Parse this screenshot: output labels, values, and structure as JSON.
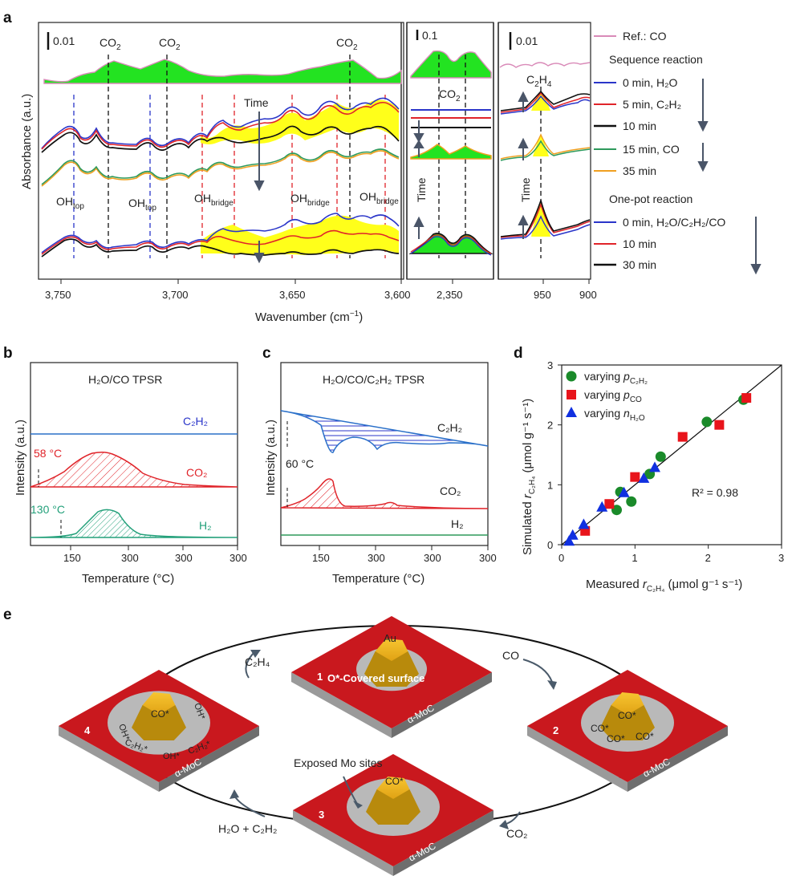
{
  "panels": {
    "a": "a",
    "b": "b",
    "c": "c",
    "d": "d",
    "e": "e"
  },
  "panel_a": {
    "ylabel": "Absorbance (a.u.)",
    "xlabel": "Wavenumber (cm",
    "xlabel_sup": "−1",
    "xlabel_end": ")",
    "scale_main": "0.01",
    "scale_mid": "0.1",
    "scale_right": "0.01",
    "co2": "CO",
    "co2_sub": "2",
    "c2h4": "C",
    "c2h4_sub": "2",
    "c2h4_mid": "H",
    "c2h4_sub2": "4",
    "time": "Time",
    "oh": "OH",
    "top": "top",
    "bridge": "bridge",
    "ticks_main": [
      "3,750",
      "3,700",
      "3,650",
      "3,600"
    ],
    "ticks_mid": [
      "2,350"
    ],
    "ticks_right": [
      "950",
      "900"
    ],
    "legend": {
      "ref": "Ref.: CO",
      "seq_title": "Sequence reaction",
      "seq": [
        "0 min, H₂O",
        "5 min, C₂H₂",
        "10 min",
        "15 min, CO",
        "35 min"
      ],
      "onepot_title": "One-pot reaction",
      "onepot": [
        "0 min, H₂O/C₂H₂/CO",
        "10 min",
        "30 min"
      ]
    },
    "colors": {
      "ref": "#d98ab8",
      "c0": "#2a35c9",
      "c5": "#e0242a",
      "c10": "#111111",
      "c15": "#2e9a5c",
      "c35": "#f0a020",
      "fill_co2": "#23e321",
      "fill_y": "#ffff1a"
    }
  },
  "panel_b": {
    "title": "H₂O/CO TPSR",
    "ylabel": "Intensity (a.u.)",
    "xlabel": "Temperature (°C)",
    "curves": [
      "C₂H₂",
      "CO₂",
      "H₂"
    ],
    "ann1": "58 °C",
    "ann2": "130 °C",
    "xticks": [
      "150",
      "300",
      "300"
    ]
  },
  "panel_c": {
    "title": "H₂O/CO/C₂H₂ TPSR",
    "ylabel": "Intensity (a.u.)",
    "xlabel": "Temperature (°C)",
    "curves": [
      "C₂H₂",
      "CO₂",
      "H₂"
    ],
    "ann": "60 °C",
    "xticks": [
      "150",
      "300",
      "300"
    ]
  },
  "chart_data": {
    "type": "scatter",
    "title": "",
    "xlabel": "Measured r_C2H4 (μmol g⁻¹ s⁻¹)",
    "ylabel": "Simulated r_C2H4 (μmol g⁻¹ s⁻¹)",
    "xlim": [
      0,
      3
    ],
    "ylim": [
      0,
      3
    ],
    "xticks": [
      "0",
      "1",
      "2",
      "3"
    ],
    "yticks": [
      "0",
      "1",
      "2",
      "3"
    ],
    "r2": "R² = 0.98",
    "series": [
      {
        "name": "varying pC2H2",
        "marker": "circle",
        "color": "#1a8a2a",
        "x": [
          0.75,
          0.8,
          0.95,
          1.2,
          1.35,
          1.98,
          2.48
        ],
        "y": [
          0.58,
          0.88,
          0.72,
          1.18,
          1.47,
          2.05,
          2.42
        ]
      },
      {
        "name": "varying pCO",
        "marker": "square",
        "color": "#e8141b",
        "x": [
          0.32,
          0.65,
          1.0,
          1.65,
          2.15,
          2.52
        ],
        "y": [
          0.23,
          0.68,
          1.13,
          1.8,
          2.0,
          2.45
        ]
      },
      {
        "name": "varying nH2O",
        "marker": "triangle",
        "color": "#1030e0",
        "x": [
          0.1,
          0.15,
          0.3,
          0.55,
          0.85,
          1.12,
          1.27
        ],
        "y": [
          0.05,
          0.15,
          0.33,
          0.62,
          0.86,
          1.1,
          1.28
        ]
      }
    ],
    "legend_labels": [
      {
        "pre": "varying ",
        "it": "p",
        "sub": "C₂H₂"
      },
      {
        "pre": "varying ",
        "it": "p",
        "sub": "CO"
      },
      {
        "pre": "varying ",
        "it": "n",
        "sub": "H₂O"
      }
    ],
    "label_x": "Measured ",
    "label_y": "Simulated ",
    "r_it": "r",
    "r_sub": "C₂H₄",
    "units": " (μmol g⁻¹ s⁻¹)"
  },
  "panel_e": {
    "states": [
      "1",
      "2",
      "3",
      "4"
    ],
    "au": "Au",
    "support": "α-MoC",
    "o_cover": "O*-Covered surface",
    "exposed": "Exposed Mo sites",
    "co_star": "CO*",
    "oh_star": "OH*",
    "c2h2_star": "C₂H₂*",
    "arrows": {
      "co": "CO",
      "co2": "CO₂",
      "h2o": "H₂O + C₂H₂",
      "c2h4": "C₂H₄"
    }
  }
}
